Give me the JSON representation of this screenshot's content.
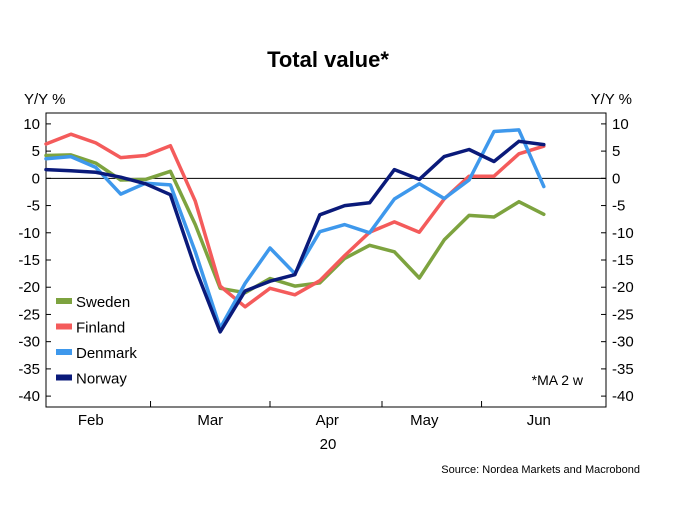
{
  "chart_data": {
    "type": "line",
    "title": "Total value*",
    "ylabel_left": "Y/Y %",
    "ylabel_right": "Y/Y %",
    "ylim": [
      -42,
      12
    ],
    "yticks": [
      10,
      5,
      0,
      -5,
      -10,
      -15,
      -20,
      -25,
      -30,
      -35,
      -40
    ],
    "xlim": [
      0,
      22.5
    ],
    "x": [
      0,
      1,
      2,
      3,
      4,
      5,
      6,
      7,
      8,
      9,
      10,
      11,
      12,
      13,
      14,
      15,
      16,
      17,
      18,
      19,
      20,
      21,
      22
    ],
    "x_month_labels": [
      {
        "label": "Feb",
        "x": 1.8
      },
      {
        "label": "Mar",
        "x": 6.6
      },
      {
        "label": "Apr",
        "x": 11.3
      },
      {
        "label": "May",
        "x": 15.2
      },
      {
        "label": "Jun",
        "x": 19.8
      }
    ],
    "x_month_separators": [
      4.2,
      9.0,
      13.5,
      17.5
    ],
    "year_label": "20",
    "series": [
      {
        "name": "Sweden",
        "color": "#7da33f",
        "values": [
          4.2,
          4.3,
          2.8,
          -0.3,
          -0.2,
          1.3,
          -8.5,
          -20.2,
          -21.0,
          -18.4,
          -19.8,
          -19.2,
          -14.7,
          -12.3,
          -13.5,
          -18.3,
          -11.3,
          -6.8,
          -7.1,
          -4.3,
          -6.6,
          null,
          null
        ]
      },
      {
        "name": "Finland",
        "color": "#f45b5b",
        "values": [
          6.3,
          8.1,
          6.5,
          3.8,
          4.2,
          6.0,
          -4.2,
          -19.8,
          -23.6,
          -20.2,
          -21.4,
          -18.8,
          -14.2,
          -9.9,
          -8.0,
          -9.9,
          -3.8,
          0.4,
          0.4,
          4.5,
          5.9,
          null,
          null
        ]
      },
      {
        "name": "Denmark",
        "color": "#3e98ec",
        "values": [
          3.6,
          4.0,
          2.0,
          -2.9,
          -0.9,
          -1.2,
          -13.5,
          -27.5,
          -19.3,
          -12.8,
          -17.5,
          -9.8,
          -8.5,
          -10.0,
          -3.8,
          -1.0,
          -3.7,
          -0.3,
          8.6,
          8.9,
          -1.5,
          null,
          null
        ]
      },
      {
        "name": "Norway",
        "color": "#0a1a7a",
        "values": [
          1.6,
          1.4,
          1.1,
          0.2,
          -1.0,
          -3.0,
          -16.5,
          -28.2,
          -20.7,
          -18.9,
          -17.7,
          -6.7,
          -5.0,
          -4.5,
          1.6,
          -0.2,
          4.0,
          5.3,
          3.1,
          6.8,
          6.2,
          null,
          null
        ]
      }
    ],
    "legend_position": "bottom-left",
    "annotation": "*MA 2 w",
    "source": "Source: Nordea Markets and Macrobond"
  }
}
